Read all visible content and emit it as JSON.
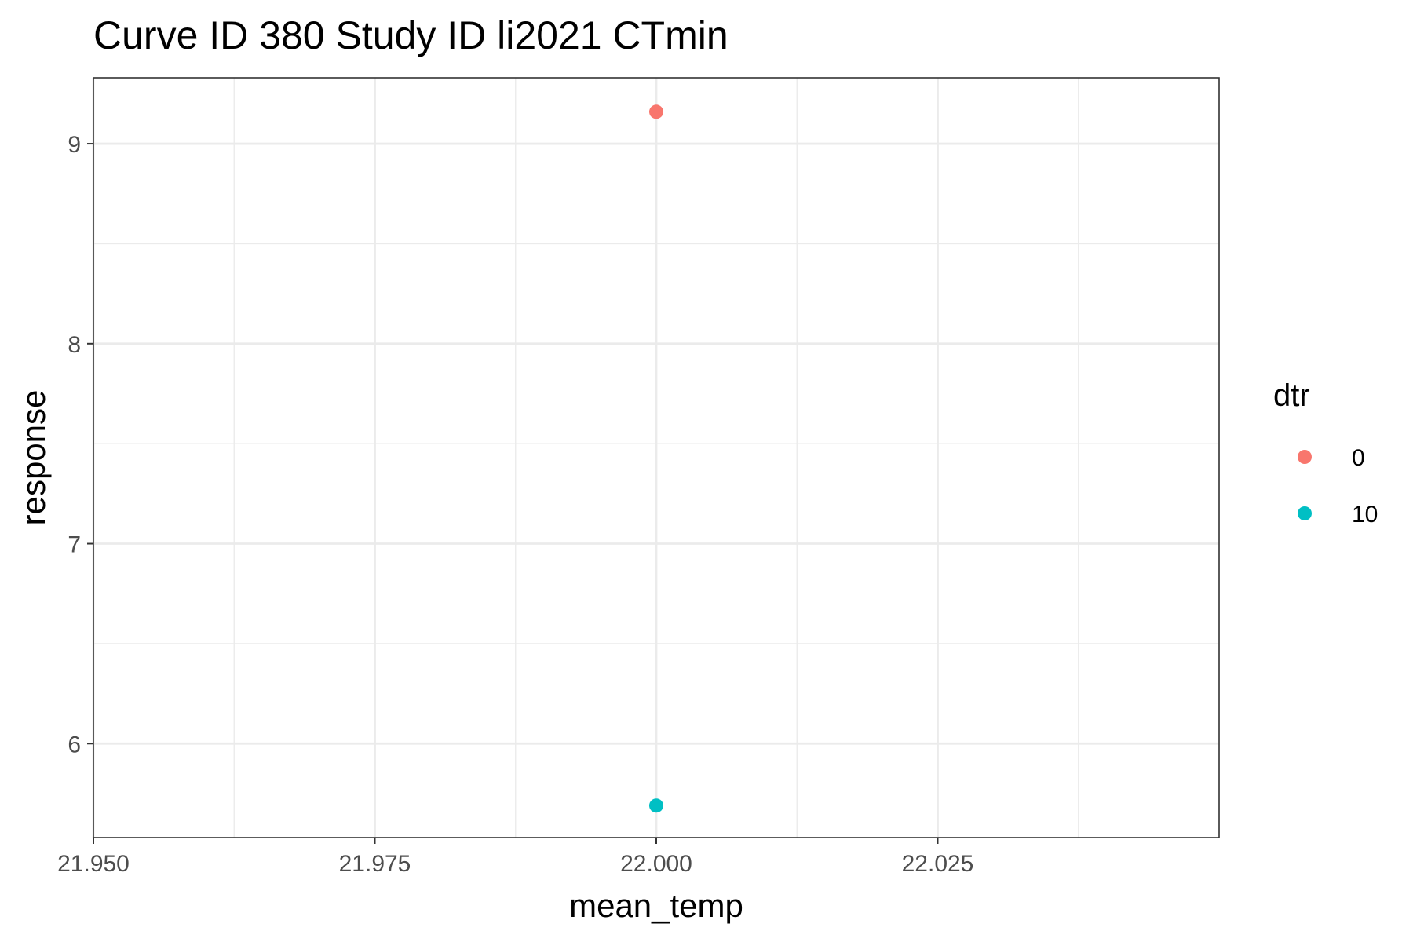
{
  "chart_data": {
    "type": "scatter",
    "title": "Curve ID 380 Study ID li2021 CTmin",
    "xlabel": "mean_temp",
    "ylabel": "response",
    "xlim": [
      21.95,
      22.05
    ],
    "ylim": [
      5.53,
      9.33
    ],
    "x_ticks": [
      21.95,
      21.975,
      22.0,
      22.025
    ],
    "x_tick_labels": [
      "21.950",
      "21.975",
      "22.000",
      "22.025"
    ],
    "y_ticks": [
      6,
      7,
      8,
      9
    ],
    "y_tick_labels": [
      "6",
      "7",
      "8",
      "9"
    ],
    "grid": true,
    "legend": {
      "title": "dtr",
      "placement": "right"
    },
    "series": [
      {
        "name": "0",
        "color": "#F8766D",
        "points": [
          {
            "x": 22.0,
            "y": 9.16
          }
        ]
      },
      {
        "name": "10",
        "color": "#00BFC4",
        "points": [
          {
            "x": 22.0,
            "y": 5.69
          }
        ]
      }
    ]
  }
}
